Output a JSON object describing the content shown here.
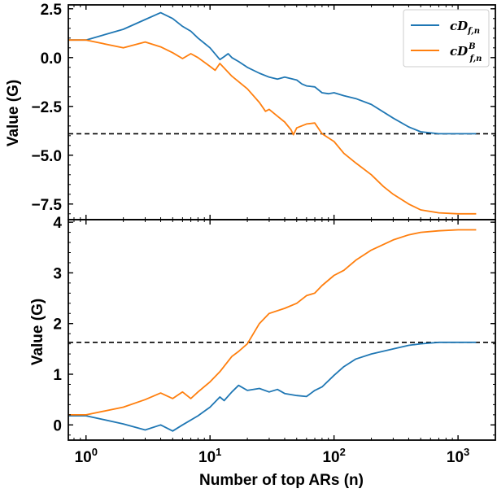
{
  "chart_data": [
    {
      "type": "line",
      "panel": "top",
      "xscale": "log",
      "xlim": [
        0.72,
        2000
      ],
      "ylim": [
        -8.3,
        2.7
      ],
      "ylabel": "Value (G)",
      "xlabel": "",
      "yticks": [
        "2.5",
        "0.0",
        "−2.5",
        "−5.0",
        "−7.5"
      ],
      "ytick_values": [
        2.5,
        0.0,
        -2.5,
        -5.0,
        -7.5
      ],
      "legend": "top-right",
      "hline": -3.9,
      "series": [
        {
          "name": "cD_{f,n}",
          "legend_base": "cD",
          "legend_sub": "f,n",
          "legend_sup": "",
          "color": "#1f77b4",
          "points": [
            [
              0.72,
              0.9
            ],
            [
              1,
              0.9
            ],
            [
              2,
              1.45
            ],
            [
              3,
              1.95
            ],
            [
              4,
              2.3
            ],
            [
              5,
              2.0
            ],
            [
              6,
              1.6
            ],
            [
              7,
              1.35
            ],
            [
              8,
              1.0
            ],
            [
              10,
              0.5
            ],
            [
              12,
              -0.1
            ],
            [
              13,
              0.05
            ],
            [
              14,
              0.2
            ],
            [
              15,
              0.0
            ],
            [
              17,
              -0.2
            ],
            [
              20,
              -0.5
            ],
            [
              25,
              -0.8
            ],
            [
              30,
              -1.0
            ],
            [
              35,
              -1.1
            ],
            [
              40,
              -1.0
            ],
            [
              50,
              -1.15
            ],
            [
              55,
              -1.35
            ],
            [
              60,
              -1.45
            ],
            [
              70,
              -1.5
            ],
            [
              80,
              -1.8
            ],
            [
              90,
              -1.85
            ],
            [
              100,
              -1.8
            ],
            [
              120,
              -1.95
            ],
            [
              150,
              -2.1
            ],
            [
              200,
              -2.4
            ],
            [
              300,
              -3.1
            ],
            [
              400,
              -3.55
            ],
            [
              500,
              -3.8
            ],
            [
              700,
              -3.9
            ],
            [
              1000,
              -3.9
            ],
            [
              1400,
              -3.9
            ]
          ]
        },
        {
          "name": "cD^B_{f,n}",
          "legend_base": "cD",
          "legend_sub": "f,n",
          "legend_sup": "B",
          "color": "#ff7f0e",
          "points": [
            [
              0.72,
              0.9
            ],
            [
              1,
              0.9
            ],
            [
              2,
              0.5
            ],
            [
              3,
              0.8
            ],
            [
              4,
              0.55
            ],
            [
              5,
              0.25
            ],
            [
              6,
              -0.05
            ],
            [
              7,
              0.2
            ],
            [
              8,
              0.0
            ],
            [
              10,
              -0.45
            ],
            [
              11,
              -0.65
            ],
            [
              12,
              -0.3
            ],
            [
              15,
              -0.95
            ],
            [
              20,
              -1.6
            ],
            [
              25,
              -2.3
            ],
            [
              28,
              -2.75
            ],
            [
              30,
              -2.65
            ],
            [
              35,
              -3.0
            ],
            [
              40,
              -3.3
            ],
            [
              45,
              -3.7
            ],
            [
              47,
              -3.95
            ],
            [
              50,
              -3.6
            ],
            [
              60,
              -3.4
            ],
            [
              70,
              -3.35
            ],
            [
              80,
              -3.9
            ],
            [
              100,
              -4.3
            ],
            [
              120,
              -4.9
            ],
            [
              150,
              -5.4
            ],
            [
              200,
              -6.0
            ],
            [
              250,
              -6.6
            ],
            [
              300,
              -7.0
            ],
            [
              400,
              -7.5
            ],
            [
              500,
              -7.8
            ],
            [
              700,
              -7.95
            ],
            [
              1000,
              -8.0
            ],
            [
              1400,
              -8.0
            ]
          ]
        }
      ]
    },
    {
      "type": "line",
      "panel": "bottom",
      "xscale": "log",
      "xlim": [
        0.72,
        2000
      ],
      "ylim": [
        -0.3,
        4.05
      ],
      "ylabel": "Value (G)",
      "xlabel": "Number of top ARs (n)",
      "yticks": [
        "0",
        "1",
        "2",
        "3",
        "4"
      ],
      "ytick_values": [
        0,
        1,
        2,
        3,
        4
      ],
      "xticks": [
        "10^0",
        "10^1",
        "10^2",
        "10^3"
      ],
      "xtick_base": "10",
      "xtick_exps": [
        "0",
        "1",
        "2",
        "3"
      ],
      "xtick_values": [
        1,
        10,
        100,
        1000
      ],
      "hline": 1.63,
      "series": [
        {
          "color": "#1f77b4",
          "points": [
            [
              0.72,
              0.18
            ],
            [
              1,
              0.18
            ],
            [
              2,
              0.02
            ],
            [
              3,
              -0.1
            ],
            [
              4,
              0.0
            ],
            [
              5,
              -0.12
            ],
            [
              6,
              0.0
            ],
            [
              8,
              0.18
            ],
            [
              10,
              0.35
            ],
            [
              12,
              0.55
            ],
            [
              13,
              0.48
            ],
            [
              15,
              0.65
            ],
            [
              17,
              0.78
            ],
            [
              20,
              0.68
            ],
            [
              25,
              0.72
            ],
            [
              30,
              0.65
            ],
            [
              35,
              0.7
            ],
            [
              40,
              0.62
            ],
            [
              50,
              0.58
            ],
            [
              60,
              0.56
            ],
            [
              70,
              0.68
            ],
            [
              80,
              0.75
            ],
            [
              100,
              0.98
            ],
            [
              120,
              1.15
            ],
            [
              150,
              1.3
            ],
            [
              200,
              1.4
            ],
            [
              300,
              1.5
            ],
            [
              400,
              1.57
            ],
            [
              500,
              1.6
            ],
            [
              700,
              1.63
            ],
            [
              1000,
              1.63
            ],
            [
              1400,
              1.63
            ]
          ]
        },
        {
          "color": "#ff7f0e",
          "points": [
            [
              0.72,
              0.2
            ],
            [
              1,
              0.2
            ],
            [
              2,
              0.35
            ],
            [
              3,
              0.5
            ],
            [
              4,
              0.63
            ],
            [
              5,
              0.52
            ],
            [
              6,
              0.65
            ],
            [
              7,
              0.52
            ],
            [
              8,
              0.65
            ],
            [
              10,
              0.85
            ],
            [
              12,
              1.05
            ],
            [
              15,
              1.35
            ],
            [
              17,
              1.45
            ],
            [
              20,
              1.6
            ],
            [
              25,
              2.0
            ],
            [
              30,
              2.2
            ],
            [
              40,
              2.3
            ],
            [
              50,
              2.4
            ],
            [
              60,
              2.55
            ],
            [
              70,
              2.6
            ],
            [
              80,
              2.75
            ],
            [
              100,
              2.95
            ],
            [
              120,
              3.05
            ],
            [
              150,
              3.25
            ],
            [
              200,
              3.45
            ],
            [
              300,
              3.65
            ],
            [
              400,
              3.75
            ],
            [
              500,
              3.8
            ],
            [
              700,
              3.83
            ],
            [
              1000,
              3.85
            ],
            [
              1400,
              3.85
            ]
          ]
        }
      ]
    }
  ]
}
